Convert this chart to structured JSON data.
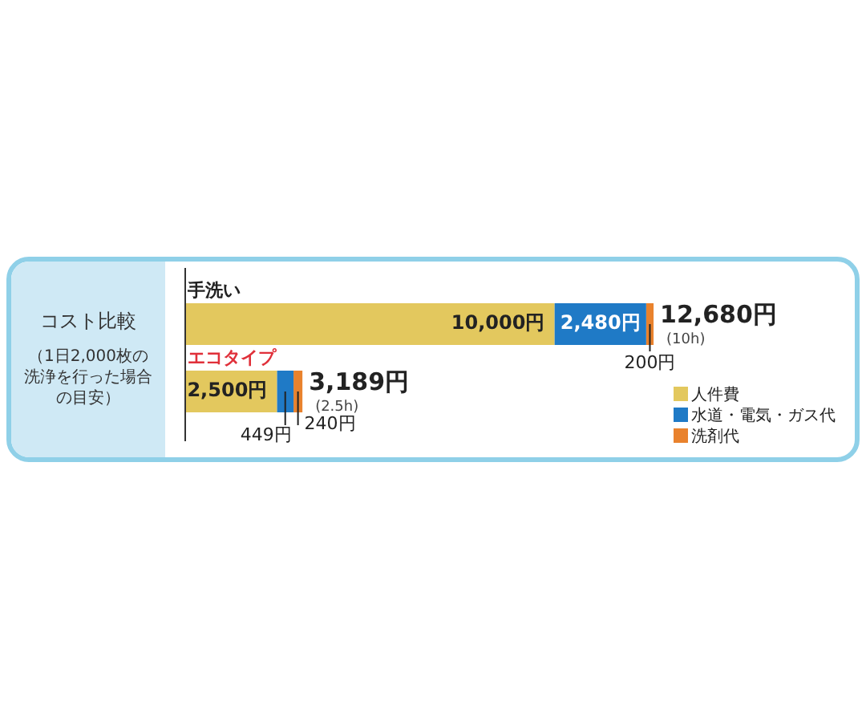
{
  "chart_data": {
    "type": "bar",
    "orientation": "horizontal",
    "stacked": true,
    "title": "コスト比較",
    "subtitle": "（1日2,000枚の洗浄を行った場合の目安）",
    "categories": [
      "手洗い",
      "エコタイプ"
    ],
    "series": [
      {
        "name": "人件費",
        "color": "#e3c85e",
        "values": [
          10000,
          2500
        ],
        "value_labels": [
          "10,000円",
          "2,500円"
        ]
      },
      {
        "name": "水道・電気・ガス代",
        "color": "#1f7ac6",
        "values": [
          2480,
          449
        ],
        "value_labels": [
          "2,480円",
          "449円"
        ]
      },
      {
        "name": "洗剤代",
        "color": "#e9822d",
        "values": [
          200,
          240
        ],
        "value_labels": [
          "200円",
          "240円"
        ]
      }
    ],
    "totals": [
      "12,680円",
      "3,189円"
    ],
    "annotations": [
      {
        "text": "(10h)",
        "x": 12680,
        "y": "手洗い"
      },
      {
        "text": "(2.5h)",
        "x": 3189,
        "y": "エコタイプ"
      }
    ],
    "tick_labels": "y",
    "legend": "bottom right"
  }
}
